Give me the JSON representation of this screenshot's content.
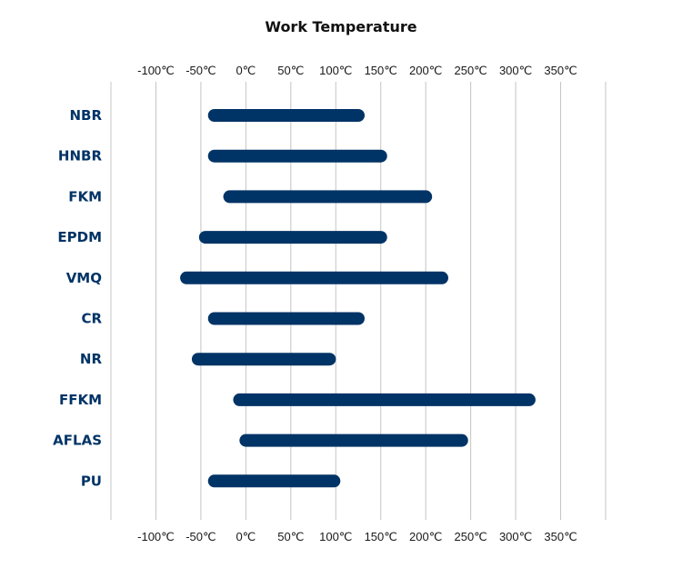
{
  "chart_data": {
    "type": "bar",
    "orientation": "horizontal-range",
    "title": "Work Temperature",
    "xlabel": "",
    "ylabel": "",
    "unit": "℃",
    "xlim": [
      -150,
      400
    ],
    "ticks": [
      -100,
      -50,
      0,
      50,
      100,
      150,
      200,
      250,
      300,
      350
    ],
    "tick_labels": [
      "-100℃",
      "-50℃",
      "0℃",
      "50℃",
      "100℃",
      "150℃",
      "200℃",
      "250℃",
      "300℃",
      "350℃"
    ],
    "tick_positions": "top-and-bottom",
    "grid": true,
    "bar_color": "#003366",
    "label_color": "#003366",
    "categories": [
      "NBR",
      "HNBR",
      "FKM",
      "EPDM",
      "VMQ",
      "CR",
      "NR",
      "FFKM",
      "AFLAS",
      "PU"
    ],
    "ranges": [
      {
        "min": -35,
        "max": 125
      },
      {
        "min": -35,
        "max": 150
      },
      {
        "min": -18,
        "max": 200
      },
      {
        "min": -45,
        "max": 150
      },
      {
        "min": -66,
        "max": 218
      },
      {
        "min": -35,
        "max": 125
      },
      {
        "min": -53,
        "max": 93
      },
      {
        "min": -7,
        "max": 315
      },
      {
        "min": 0,
        "max": 240
      },
      {
        "min": -35,
        "max": 98
      }
    ]
  }
}
